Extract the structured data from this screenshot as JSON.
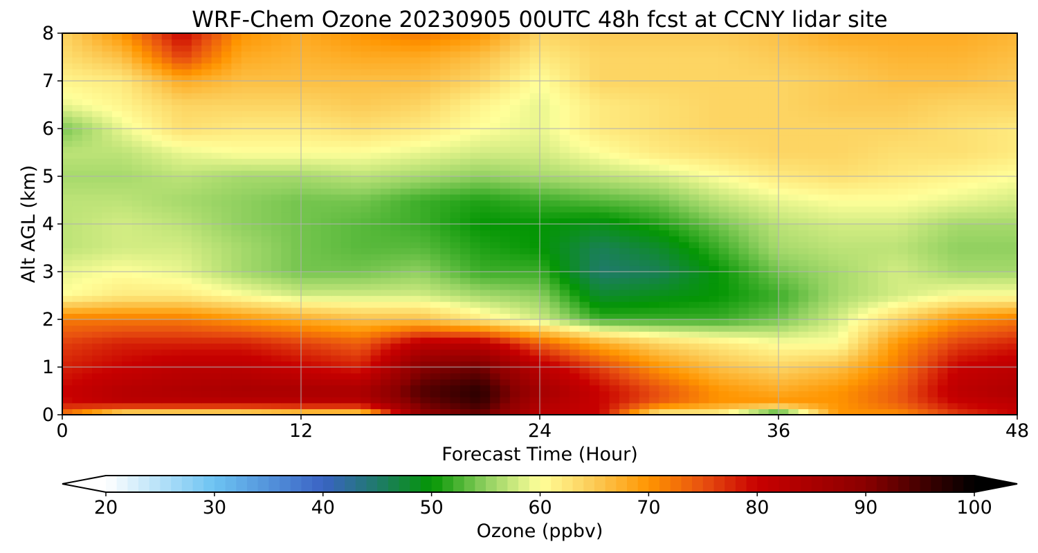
{
  "chart_data": {
    "type": "heatmap",
    "title": "WRF-Chem Ozone  20230905 00UTC 48h fcst at CCNY lidar site",
    "xlabel": "Forecast Time (Hour)",
    "ylabel": "Alt AGL (km)",
    "xlim": [
      0,
      48
    ],
    "ylim": [
      0,
      8
    ],
    "x_ticks": [
      0,
      12,
      24,
      36,
      48
    ],
    "y_ticks": [
      0,
      1,
      2,
      3,
      4,
      5,
      6,
      7,
      8
    ],
    "grid": true,
    "colorbar": {
      "label": "Ozone  (ppbv)",
      "range": [
        20,
        100
      ],
      "ticks": [
        20,
        30,
        40,
        50,
        60,
        70,
        80,
        90,
        100
      ],
      "extend": "both",
      "position": "bottom",
      "colormap_stops": [
        {
          "value": 20,
          "color": "#ffffff"
        },
        {
          "value": 30,
          "color": "#6cc3f2"
        },
        {
          "value": 40,
          "color": "#3a63c4"
        },
        {
          "value": 45,
          "color": "#1f7a6a"
        },
        {
          "value": 50,
          "color": "#049604"
        },
        {
          "value": 55,
          "color": "#90d060"
        },
        {
          "value": 60,
          "color": "#ffff9a"
        },
        {
          "value": 65,
          "color": "#fcca55"
        },
        {
          "value": 70,
          "color": "#ff9500"
        },
        {
          "value": 75,
          "color": "#e85010"
        },
        {
          "value": 80,
          "color": "#c80000"
        },
        {
          "value": 90,
          "color": "#8a0000"
        },
        {
          "value": 100,
          "color": "#000000"
        }
      ]
    },
    "x_grid_hours": [
      0,
      3,
      6,
      9,
      12,
      15,
      18,
      21,
      24,
      27,
      30,
      33,
      36,
      39,
      42,
      45,
      48
    ],
    "y_grid_km": [
      0,
      0.25,
      0.5,
      1,
      1.5,
      2,
      2.5,
      3,
      3.5,
      4,
      4.5,
      5,
      5.5,
      6,
      6.5,
      7,
      7.5,
      8
    ],
    "values_ppbv": [
      [
        72,
        60,
        60,
        60,
        62,
        62,
        88,
        92,
        82,
        80,
        60,
        60,
        48,
        70,
        70,
        76,
        80
      ],
      [
        79,
        82,
        82,
        82,
        82,
        82,
        92,
        96,
        84,
        80,
        74,
        70,
        70,
        70,
        74,
        80,
        82
      ],
      [
        80,
        83,
        84,
        85,
        85,
        85,
        94,
        97,
        86,
        80,
        75,
        70,
        68,
        70,
        74,
        82,
        84
      ],
      [
        78,
        80,
        82,
        82,
        80,
        78,
        90,
        92,
        82,
        76,
        70,
        66,
        64,
        66,
        72,
        80,
        82
      ],
      [
        76,
        78,
        78,
        78,
        76,
        74,
        82,
        82,
        74,
        68,
        64,
        62,
        60,
        60,
        70,
        76,
        78
      ],
      [
        72,
        72,
        72,
        70,
        68,
        66,
        66,
        62,
        58,
        52,
        52,
        52,
        54,
        58,
        64,
        70,
        72
      ],
      [
        60,
        62,
        62,
        60,
        58,
        58,
        58,
        56,
        55,
        48,
        49,
        50,
        52,
        56,
        58,
        60,
        60
      ],
      [
        59,
        60,
        59,
        56,
        54,
        54,
        55,
        52,
        52,
        45,
        46,
        50,
        54,
        56,
        58,
        56,
        56
      ],
      [
        57,
        58,
        58,
        56,
        54,
        53,
        53,
        51,
        50,
        46,
        48,
        52,
        56,
        57,
        57,
        55,
        55
      ],
      [
        57,
        58,
        57,
        55,
        54,
        53,
        52,
        50,
        50,
        49,
        51,
        54,
        57,
        58,
        58,
        56,
        56
      ],
      [
        57,
        57,
        56,
        55,
        54,
        54,
        52,
        51,
        52,
        53,
        54,
        57,
        59,
        60,
        60,
        59,
        58
      ],
      [
        56,
        56,
        57,
        56,
        56,
        57,
        56,
        55,
        56,
        57,
        58,
        60,
        62,
        63,
        62,
        61,
        60
      ],
      [
        57,
        57,
        59,
        60,
        60,
        60,
        59,
        58,
        58,
        60,
        62,
        63,
        64,
        64,
        63,
        63,
        62
      ],
      [
        54,
        59,
        63,
        62,
        62,
        63,
        62,
        60,
        59,
        62,
        63,
        64,
        64,
        64,
        64,
        63,
        62
      ],
      [
        59,
        61,
        64,
        64,
        64,
        65,
        64,
        61,
        59,
        62,
        63,
        64,
        64,
        65,
        65,
        64,
        64
      ],
      [
        61,
        62,
        68,
        66,
        66,
        66,
        66,
        64,
        60,
        64,
        64,
        64,
        64,
        65,
        66,
        66,
        65
      ],
      [
        63,
        66,
        76,
        68,
        67,
        68,
        68,
        66,
        62,
        64,
        64,
        64,
        65,
        66,
        67,
        67,
        66
      ],
      [
        64,
        70,
        80,
        70,
        68,
        70,
        72,
        70,
        64,
        65,
        65,
        65,
        66,
        68,
        68,
        68,
        67
      ]
    ]
  }
}
